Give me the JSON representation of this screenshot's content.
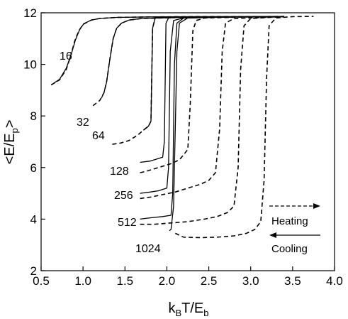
{
  "chart_data": {
    "type": "line",
    "xlabel_main": "k",
    "xlabel_sub1": "B",
    "xlabel_mid": "T/E",
    "xlabel_sub2": "b",
    "ylabel_main": "<E/E",
    "ylabel_sub": "p",
    "ylabel_end": ">",
    "xlim": [
      0.5,
      4.0
    ],
    "ylim": [
      2,
      12
    ],
    "xticks": [
      "0.5",
      "1.0",
      "1.5",
      "2.0",
      "2.5",
      "3.0",
      "3.5",
      "4.0"
    ],
    "yticks": [
      "2",
      "4",
      "6",
      "8",
      "10",
      "12"
    ],
    "grid": false,
    "legend": {
      "placement": "bottom-right",
      "heating": "Heating",
      "cooling": "Cooling"
    },
    "annotations": [
      "16",
      "32",
      "64",
      "128",
      "256",
      "512",
      "1024"
    ],
    "series": [
      {
        "label": "16",
        "style": "heating",
        "x": [
          0.62,
          0.72,
          0.8,
          0.85,
          0.9,
          0.95,
          1.0,
          1.1,
          1.2,
          1.4,
          1.8,
          2.4,
          3.0,
          3.4
        ],
        "y": [
          9.2,
          9.4,
          9.8,
          10.3,
          10.9,
          11.3,
          11.55,
          11.72,
          11.78,
          11.82,
          11.84,
          11.85,
          11.85,
          11.86
        ]
      },
      {
        "label": "16",
        "style": "cooling",
        "x": [
          0.62,
          0.72,
          0.8,
          0.86,
          0.91,
          0.96,
          1.01,
          1.1,
          1.2,
          1.4,
          1.8,
          2.4,
          3.0,
          3.4
        ],
        "y": [
          9.2,
          9.42,
          9.85,
          10.4,
          10.95,
          11.35,
          11.58,
          11.72,
          11.78,
          11.82,
          11.84,
          11.85,
          11.85,
          11.86
        ]
      },
      {
        "label": "32",
        "style": "heating",
        "x": [
          1.12,
          1.2,
          1.25,
          1.28,
          1.32,
          1.36,
          1.4,
          1.46,
          1.55,
          1.7,
          2.2,
          3.0,
          3.4
        ],
        "y": [
          8.4,
          8.6,
          8.9,
          9.3,
          10.2,
          11.0,
          11.4,
          11.6,
          11.72,
          11.78,
          11.82,
          11.84,
          11.85
        ]
      },
      {
        "label": "32",
        "style": "cooling",
        "x": [
          1.22,
          1.25,
          1.28,
          1.32,
          1.36,
          1.4,
          1.46,
          1.55,
          1.7,
          2.2,
          3.0,
          3.4
        ],
        "y": [
          8.7,
          8.9,
          9.3,
          10.2,
          11.0,
          11.4,
          11.6,
          11.72,
          11.78,
          11.82,
          11.84,
          11.85
        ]
      },
      {
        "label": "64",
        "style": "heating",
        "x": [
          1.35,
          1.45,
          1.55,
          1.65,
          1.72,
          1.78,
          1.81,
          1.83,
          1.86,
          1.9,
          2.2,
          3.0,
          3.4
        ],
        "y": [
          6.9,
          6.95,
          7.05,
          7.25,
          7.45,
          7.6,
          7.8,
          11.4,
          11.8,
          11.82,
          11.84,
          11.85,
          11.85
        ]
      },
      {
        "label": "64",
        "style": "cooling",
        "x": [
          1.72,
          1.78,
          1.81,
          1.83,
          1.86,
          1.9,
          2.2,
          3.0,
          3.4
        ],
        "y": [
          7.45,
          7.6,
          7.8,
          11.4,
          11.8,
          11.82,
          11.84,
          11.85,
          11.85
        ]
      },
      {
        "label": "128",
        "style": "heating",
        "x": [
          1.68,
          1.75,
          1.85,
          1.95,
          2.05,
          2.15,
          2.2,
          2.25,
          2.28,
          2.31,
          2.35,
          2.45,
          3.0,
          3.4
        ],
        "y": [
          5.8,
          5.85,
          5.95,
          6.05,
          6.15,
          6.3,
          6.5,
          6.7,
          8.5,
          11.3,
          11.7,
          11.8,
          11.84,
          11.85
        ]
      },
      {
        "label": "128",
        "style": "cooling",
        "x": [
          1.68,
          1.8,
          1.9,
          1.95,
          1.97,
          1.99,
          2.02,
          2.1,
          2.5,
          3.4
        ],
        "y": [
          6.2,
          6.25,
          6.35,
          6.4,
          7.0,
          11.6,
          11.8,
          11.82,
          11.84,
          11.85
        ]
      },
      {
        "label": "256",
        "style": "heating",
        "x": [
          1.68,
          1.8,
          1.95,
          2.1,
          2.25,
          2.4,
          2.5,
          2.58,
          2.63,
          2.66,
          2.7,
          2.8,
          3.4
        ],
        "y": [
          4.8,
          4.85,
          4.95,
          5.05,
          5.2,
          5.35,
          5.5,
          5.8,
          7.5,
          10.5,
          11.6,
          11.78,
          11.85
        ]
      },
      {
        "label": "256",
        "style": "cooling",
        "x": [
          1.68,
          1.8,
          1.9,
          2.0,
          2.02,
          2.04,
          2.08,
          2.2,
          2.8,
          3.4
        ],
        "y": [
          5.0,
          5.05,
          5.1,
          5.2,
          6.0,
          10.5,
          11.7,
          11.8,
          11.84,
          11.85
        ]
      },
      {
        "label": "512",
        "style": "heating",
        "x": [
          1.68,
          1.85,
          2.05,
          2.25,
          2.45,
          2.6,
          2.72,
          2.8,
          2.85,
          2.88,
          2.92,
          3.0,
          3.4
        ],
        "y": [
          3.8,
          3.8,
          3.85,
          3.9,
          4.0,
          4.1,
          4.25,
          4.5,
          6.0,
          9.8,
          11.5,
          11.78,
          11.85
        ]
      },
      {
        "label": "512",
        "style": "cooling",
        "x": [
          1.68,
          1.8,
          1.95,
          2.05,
          2.07,
          2.09,
          2.12,
          2.2,
          2.8,
          3.4
        ],
        "y": [
          4.0,
          4.05,
          4.1,
          4.15,
          5.0,
          10.0,
          11.6,
          11.8,
          11.84,
          11.85
        ]
      },
      {
        "label": "1024",
        "style": "heating",
        "x": [
          2.1,
          2.2,
          2.4,
          2.6,
          2.8,
          2.95,
          3.05,
          3.12,
          3.16,
          3.19,
          3.22,
          3.3,
          3.5,
          3.75
        ],
        "y": [
          3.45,
          3.3,
          3.28,
          3.3,
          3.35,
          3.45,
          3.6,
          3.9,
          5.5,
          9.5,
          11.5,
          11.8,
          11.85,
          11.86
        ]
      },
      {
        "label": "1024",
        "style": "cooling",
        "x": [
          2.03,
          2.05,
          2.08,
          2.1,
          2.12,
          2.15,
          2.25,
          2.8,
          3.4
        ],
        "y": [
          3.55,
          3.6,
          4.5,
          7.5,
          10.5,
          11.6,
          11.8,
          11.84,
          11.85
        ]
      }
    ]
  }
}
